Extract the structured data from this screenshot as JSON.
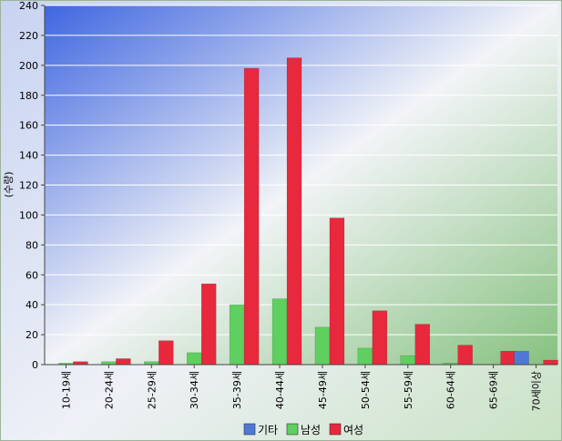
{
  "chart_data": {
    "type": "bar",
    "ylabel": "(수량)",
    "ylim": [
      0,
      240
    ],
    "yticks": [
      0,
      20,
      40,
      60,
      80,
      100,
      120,
      140,
      160,
      180,
      200,
      220,
      240
    ],
    "grid": true,
    "legend_position": "bottom-center",
    "categories": [
      "10-19세",
      "20-24세",
      "25-29세",
      "30-34세",
      "35-39세",
      "40-44세",
      "45-49세",
      "50-54세",
      "55-59세",
      "60-64세",
      "65-69세",
      "70세이상"
    ],
    "series": [
      {
        "name": "기타",
        "color": "#4f78d6",
        "values": [
          0,
          0,
          0,
          0,
          0,
          0,
          0,
          0,
          0,
          0,
          0,
          9
        ]
      },
      {
        "name": "남성",
        "color": "#5fcf5f",
        "values": [
          1,
          2,
          2,
          8,
          40,
          44,
          25,
          11,
          6,
          1,
          0,
          0
        ]
      },
      {
        "name": "여성",
        "color": "#e8283c",
        "values": [
          2,
          4,
          16,
          54,
          198,
          205,
          98,
          36,
          27,
          13,
          9,
          3
        ]
      }
    ]
  }
}
